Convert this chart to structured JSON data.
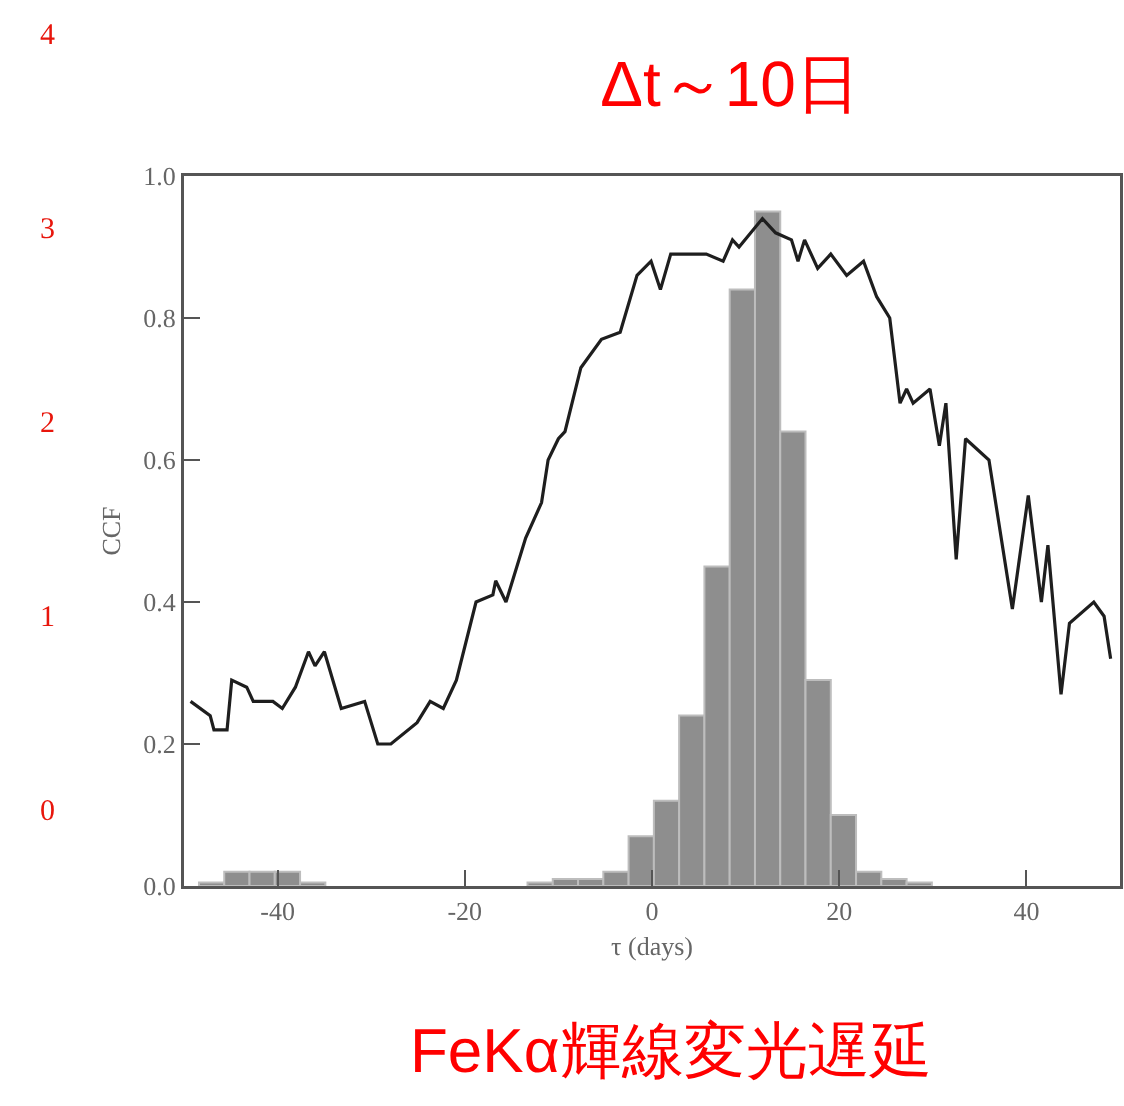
{
  "chart_data": {
    "type": "line",
    "title": "Δt～10日",
    "xlabel": "τ (days)",
    "ylabel": "CCF",
    "annotations": [
      "4",
      "3",
      "2",
      "1",
      "0",
      "FeKα輝線変光遅延"
    ],
    "xlim": [
      -50,
      50
    ],
    "xticks": [
      -40,
      -20,
      0,
      20,
      40
    ],
    "ylim": [
      0,
      1
    ],
    "yticks": [
      {
        "value": 0,
        "label": "0.0"
      },
      {
        "value": 0.2,
        "label": "0.2"
      },
      {
        "value": 0.4,
        "label": "0.4"
      },
      {
        "value": 0.6,
        "label": "0.6"
      },
      {
        "value": 0.8,
        "label": "0.8"
      },
      {
        "value": 1,
        "label": "1.0"
      }
    ],
    "grid": false,
    "series": [
      {
        "type": "histogram",
        "color": "#8e8e8e",
        "bins": [
          -48.4,
          -45.7,
          -43.0,
          -40.3,
          -37.6,
          -34.9,
          -32.2,
          -29.5,
          -26.8,
          -24.1,
          -21.4,
          -18.7,
          -16.0,
          -13.3,
          -10.6,
          -7.9,
          -5.2,
          -2.5,
          0.2,
          2.9,
          5.6,
          8.3,
          11.0,
          13.7,
          16.4,
          19.1,
          21.8,
          24.5,
          27.2,
          29.9
        ],
        "values": [
          0.005,
          0.02,
          0.02,
          0.02,
          0.005,
          0,
          0,
          0,
          0,
          0,
          0,
          0,
          0,
          0.005,
          0.01,
          0.01,
          0.02,
          0.07,
          0.12,
          0.24,
          0.45,
          0.84,
          0.95,
          0.64,
          0.29,
          0.1,
          0.02,
          0.01,
          0.005
        ]
      },
      {
        "color": "#1e1e1e",
        "x": [
          -49.3,
          -47.2,
          -46.8,
          -45.4,
          -44.9,
          -43.3,
          -42.6,
          -40.5,
          -39.5,
          -38.1,
          -36.7,
          -36.0,
          -35.0,
          -33.2,
          -30.7,
          -29.3,
          -27.9,
          -25.1,
          -23.7,
          -22.3,
          -20.9,
          -18.8,
          -17.0,
          -16.7,
          -15.6,
          -13.5,
          -11.8,
          -11.1,
          -10.0,
          -9.3,
          -7.6,
          -5.4,
          -3.4,
          -1.6,
          -0.1,
          0.9,
          2.0,
          5.8,
          7.6,
          8.6,
          9.3,
          11.8,
          13.2,
          14.9,
          15.6,
          16.3,
          17.7,
          19.1,
          20.8,
          22.6,
          24.0,
          25.4,
          26.5,
          27.2,
          27.9,
          29.7,
          30.7,
          31.4,
          32.5,
          33.5,
          36.0,
          38.5,
          40.2,
          41.6,
          42.3,
          43.7,
          44.6,
          47.2,
          48.3,
          49.0
        ],
        "values": [
          0.26,
          0.24,
          0.22,
          0.22,
          0.29,
          0.28,
          0.26,
          0.26,
          0.25,
          0.28,
          0.33,
          0.31,
          0.33,
          0.25,
          0.26,
          0.2,
          0.2,
          0.23,
          0.26,
          0.25,
          0.29,
          0.4,
          0.41,
          0.43,
          0.4,
          0.49,
          0.54,
          0.6,
          0.63,
          0.64,
          0.73,
          0.77,
          0.78,
          0.86,
          0.88,
          0.84,
          0.89,
          0.89,
          0.88,
          0.91,
          0.9,
          0.94,
          0.92,
          0.91,
          0.88,
          0.91,
          0.87,
          0.89,
          0.86,
          0.88,
          0.83,
          0.8,
          0.68,
          0.7,
          0.68,
          0.7,
          0.62,
          0.68,
          0.46,
          0.63,
          0.6,
          0.39,
          0.55,
          0.4,
          0.48,
          0.27,
          0.37,
          0.4,
          0.38,
          0.32
        ]
      }
    ]
  }
}
